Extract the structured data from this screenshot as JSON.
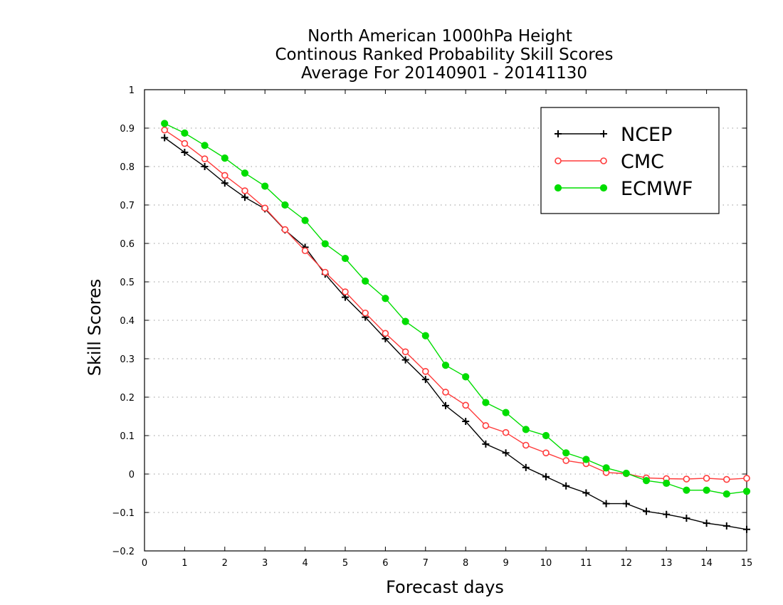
{
  "chart_data": {
    "type": "line",
    "title": [
      "North American 1000hPa Height",
      "Continous Ranked Probability Skill Scores",
      "Average For 20140901 - 20141130"
    ],
    "xlabel": "Forecast days",
    "ylabel": "Skill Scores",
    "xlim": [
      0,
      15
    ],
    "ylim": [
      -0.2,
      1
    ],
    "xticks": [
      "0",
      "1",
      "2",
      "3",
      "4",
      "5",
      "6",
      "7",
      "8",
      "9",
      "10",
      "11",
      "12",
      "13",
      "14",
      "15"
    ],
    "yticks": [
      "−0.2",
      "−0.1",
      "0",
      "0.1",
      "0.2",
      "0.3",
      "0.4",
      "0.5",
      "0.6",
      "0.7",
      "0.8",
      "0.9",
      "1"
    ],
    "grid": "horizontal dotted",
    "legend_position": "top-right",
    "x": [
      0.5,
      1,
      1.5,
      2,
      2.5,
      3,
      3.5,
      4,
      4.5,
      5,
      5.5,
      6,
      6.5,
      7,
      7.5,
      8,
      8.5,
      9,
      9.5,
      10,
      10.5,
      11,
      11.5,
      12,
      12.5,
      13,
      13.5,
      14,
      14.5,
      15
    ],
    "series": [
      {
        "name": "NCEP",
        "color": "#000000",
        "marker": "plus",
        "values": [
          0.875,
          0.837,
          0.8,
          0.757,
          0.72,
          0.69,
          0.635,
          0.59,
          0.52,
          0.46,
          0.408,
          0.352,
          0.297,
          0.246,
          0.178,
          0.137,
          0.078,
          0.055,
          0.017,
          -0.007,
          -0.031,
          -0.049,
          -0.077,
          -0.077,
          -0.097,
          -0.105,
          -0.115,
          -0.128,
          -0.135,
          -0.144
        ]
      },
      {
        "name": "CMC",
        "color": "#ff3b3b",
        "marker": "open-circle",
        "values": [
          0.895,
          0.86,
          0.82,
          0.777,
          0.737,
          0.692,
          0.636,
          0.581,
          0.525,
          0.474,
          0.419,
          0.366,
          0.318,
          0.267,
          0.213,
          0.179,
          0.126,
          0.108,
          0.075,
          0.055,
          0.035,
          0.027,
          0.004,
          0.001,
          -0.01,
          -0.012,
          -0.013,
          -0.011,
          -0.014,
          -0.011
        ]
      },
      {
        "name": "ECMWF",
        "color": "#00dd00",
        "marker": "filled-circle",
        "values": [
          0.912,
          0.887,
          0.855,
          0.822,
          0.783,
          0.749,
          0.7,
          0.66,
          0.599,
          0.561,
          0.502,
          0.457,
          0.397,
          0.36,
          0.283,
          0.253,
          0.186,
          0.16,
          0.116,
          0.1,
          0.055,
          0.038,
          0.016,
          0.002,
          -0.017,
          -0.024,
          -0.042,
          -0.042,
          -0.052,
          -0.045
        ]
      }
    ]
  }
}
